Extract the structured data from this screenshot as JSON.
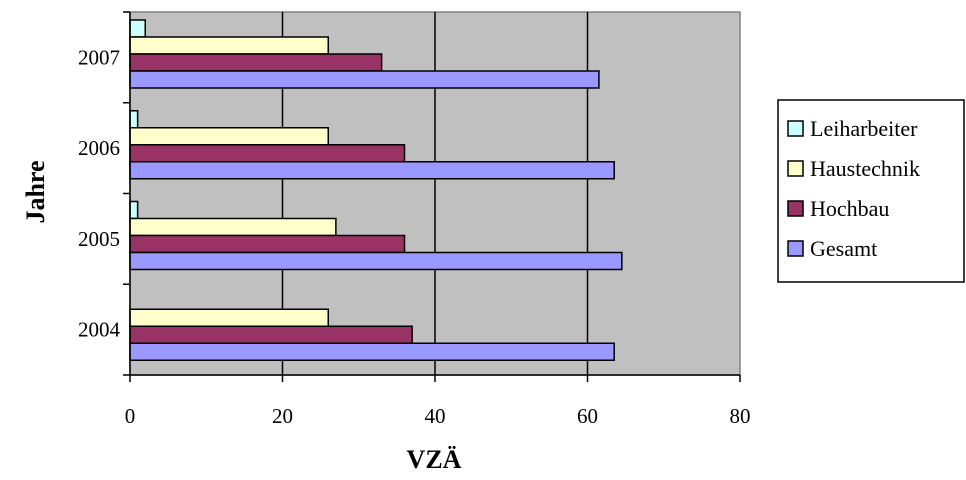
{
  "chart_data": {
    "type": "bar",
    "orientation": "horizontal",
    "title": "",
    "xlabel": "VZÄ",
    "ylabel": "Jahre",
    "xlim": [
      0,
      80
    ],
    "x_ticks": [
      "0",
      "20",
      "40",
      "60",
      "80"
    ],
    "categories": [
      "2004",
      "2005",
      "2006",
      "2007"
    ],
    "series": [
      {
        "name": "Leiharbeiter",
        "color": "#ccffff",
        "values": [
          0,
          1,
          1,
          2
        ]
      },
      {
        "name": "Haustechnik",
        "color": "#ffffcc",
        "values": [
          26,
          27,
          26,
          26
        ]
      },
      {
        "name": "Hochbau",
        "color": "#993366",
        "values": [
          37,
          36,
          36,
          33
        ]
      },
      {
        "name": "Gesamt",
        "color": "#9999ff",
        "values": [
          63.5,
          64.5,
          63.5,
          61.5
        ]
      }
    ],
    "grid": "vertical",
    "plot_background": "#c0c0c0",
    "legend_position": "right"
  }
}
